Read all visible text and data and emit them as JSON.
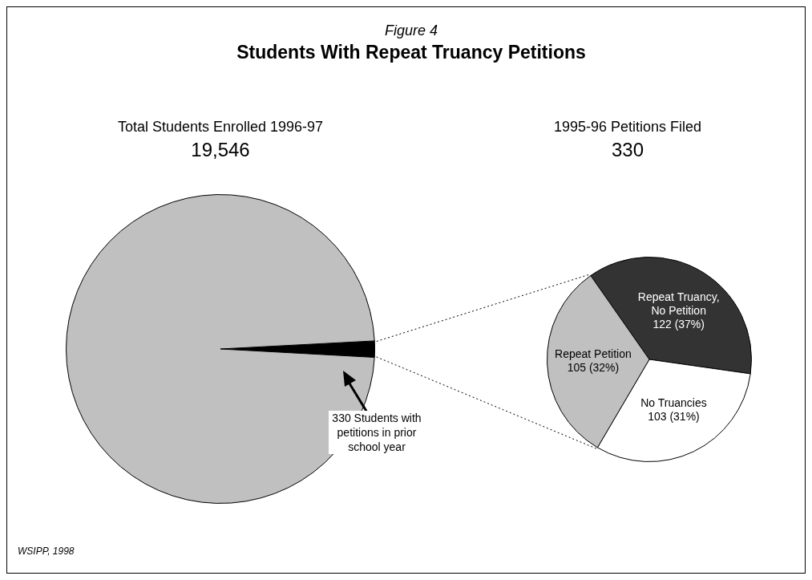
{
  "chart_data": [
    {
      "type": "pie",
      "title": "Students With Repeat Truancy Petitions",
      "subtitle": "Figure 4",
      "categories": [
        null,
        null
      ],
      "values": [
        1.7,
        98.3
      ],
      "colors": [
        "#000000",
        "#c0c0c0"
      ],
      "legend": false,
      "annotations": [
        "Total Students Enrolled 1996-97",
        "19,546",
        "330 Students with petitions in prior school year",
        "WSIPP, 1998"
      ]
    },
    {
      "type": "pie",
      "title": "1995-96 Petitions Filed",
      "subtitle": "330",
      "categories": [
        "Repeat Truancy, No Petition",
        "No Truancies",
        "Repeat Petition"
      ],
      "values": [
        122,
        103,
        105
      ],
      "colors": [
        "#333333",
        "#ffffff",
        "#c0c0c0"
      ],
      "legend": false,
      "value_labels": [
        "122 (37%)",
        "103 (31%)",
        "105 (32%)"
      ]
    }
  ]
}
